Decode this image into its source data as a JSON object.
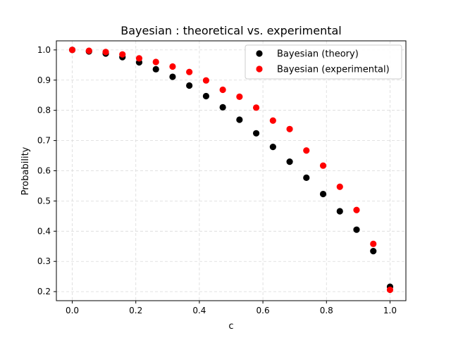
{
  "chart_data": {
    "type": "scatter",
    "title": "Bayesian : theoretical vs. experimental",
    "xlabel": "c",
    "ylabel": "Probability",
    "xlim": [
      -0.05,
      1.05
    ],
    "ylim": [
      0.17,
      1.03
    ],
    "xticks": [
      0.0,
      0.2,
      0.4,
      0.6,
      0.8,
      1.0
    ],
    "xtick_labels": [
      "0.0",
      "0.2",
      "0.4",
      "0.6",
      "0.8",
      "1.0"
    ],
    "yticks": [
      0.2,
      0.3,
      0.4,
      0.5,
      0.6,
      0.7,
      0.8,
      0.9,
      1.0
    ],
    "ytick_labels": [
      "0.2",
      "0.3",
      "0.4",
      "0.5",
      "0.6",
      "0.7",
      "0.8",
      "0.9",
      "1.0"
    ],
    "grid": true,
    "legend_position": "top-right",
    "series": [
      {
        "name": "Bayesian (theory)",
        "color": "#000000",
        "x": [
          0.0,
          0.0526,
          0.1053,
          0.1579,
          0.2105,
          0.2632,
          0.3158,
          0.3684,
          0.4211,
          0.4737,
          0.5263,
          0.5789,
          0.6316,
          0.6842,
          0.7368,
          0.7895,
          0.8421,
          0.8947,
          0.9474,
          1.0
        ],
        "y": [
          1.0,
          0.995,
          0.988,
          0.976,
          0.959,
          0.936,
          0.911,
          0.882,
          0.847,
          0.81,
          0.769,
          0.724,
          0.679,
          0.63,
          0.577,
          0.523,
          0.466,
          0.405,
          0.334,
          0.216
        ]
      },
      {
        "name": "Bayesian (experimental)",
        "color": "#ff0000",
        "x": [
          0.0,
          0.0526,
          0.1053,
          0.1579,
          0.2105,
          0.2632,
          0.3158,
          0.3684,
          0.4211,
          0.4737,
          0.5263,
          0.5789,
          0.6316,
          0.6842,
          0.7368,
          0.7895,
          0.8421,
          0.8947,
          0.9474,
          1.0
        ],
        "y": [
          1.0,
          0.997,
          0.993,
          0.985,
          0.972,
          0.96,
          0.945,
          0.927,
          0.899,
          0.868,
          0.845,
          0.809,
          0.766,
          0.738,
          0.667,
          0.617,
          0.547,
          0.47,
          0.358,
          0.206
        ]
      }
    ]
  }
}
